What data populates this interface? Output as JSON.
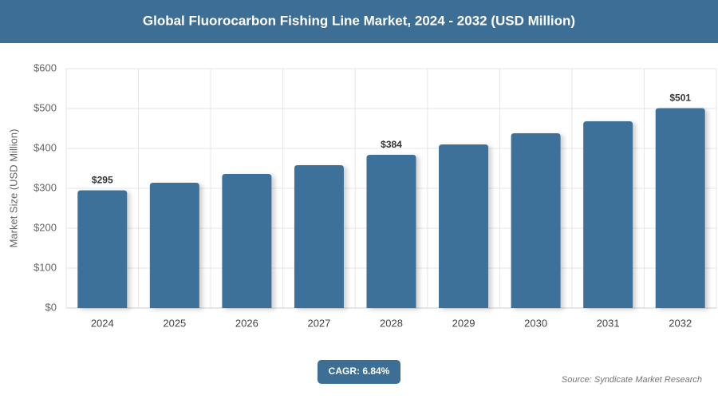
{
  "chart_data": {
    "type": "bar",
    "title": "Global Fluorocarbon Fishing Line Market, 2024 - 2032 (USD Million)",
    "y_label": "Market Size (USD Million)",
    "categories": [
      "2024",
      "2025",
      "2026",
      "2027",
      "2028",
      "2029",
      "2030",
      "2031",
      "2032"
    ],
    "values": [
      295,
      314,
      336,
      358,
      384,
      410,
      438,
      468,
      501
    ],
    "value_labels": [
      "$295",
      null,
      null,
      null,
      "$384",
      null,
      null,
      null,
      "$501"
    ],
    "color": "#3d7199",
    "ylim": [
      0,
      600
    ],
    "yticks": [
      {
        "value": 0,
        "label": "$0"
      },
      {
        "value": 100,
        "label": "$100"
      },
      {
        "value": 200,
        "label": "$200"
      },
      {
        "value": 300,
        "label": "$300"
      },
      {
        "value": 400,
        "label": "$400"
      },
      {
        "value": 500,
        "label": "$500"
      },
      {
        "value": 600,
        "label": "$600"
      }
    ],
    "grid": true,
    "cagr": "CAGR: 6.84%",
    "source": "Source: Syndicate Market Research"
  }
}
